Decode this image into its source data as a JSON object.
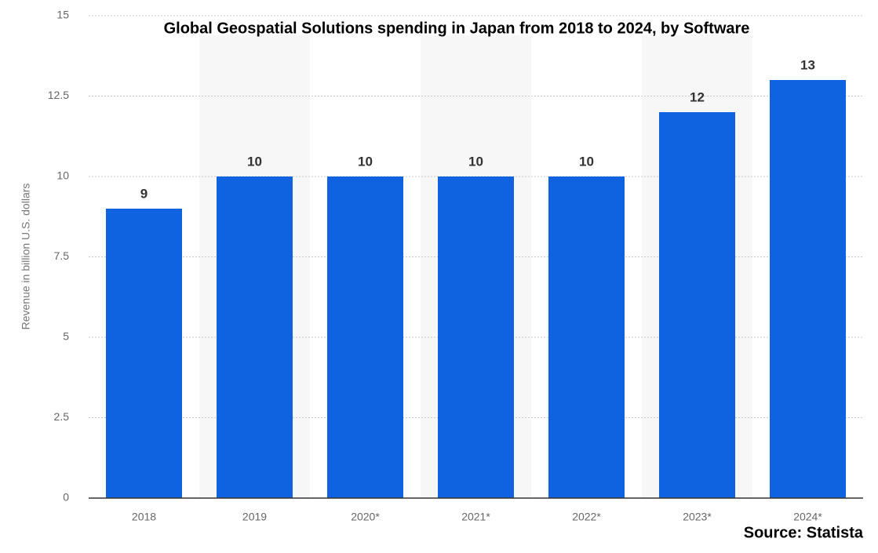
{
  "chart_data": {
    "type": "bar",
    "title": "Global Geospatial Solutions spending in Japan from 2018 to 2024, by Software",
    "y_label": "Revenue in billion U.S. dollars",
    "source": "Source: Statista",
    "categories": [
      "2018",
      "2019",
      "2020*",
      "2021*",
      "2022*",
      "2023*",
      "2024*"
    ],
    "values": [
      9,
      10,
      10,
      10,
      10,
      12,
      13
    ],
    "color": "#0f63e0",
    "ylim": [
      0,
      15
    ],
    "yticks": [
      0,
      2.5,
      5,
      7.5,
      10,
      12.5,
      15
    ],
    "grid": true
  }
}
